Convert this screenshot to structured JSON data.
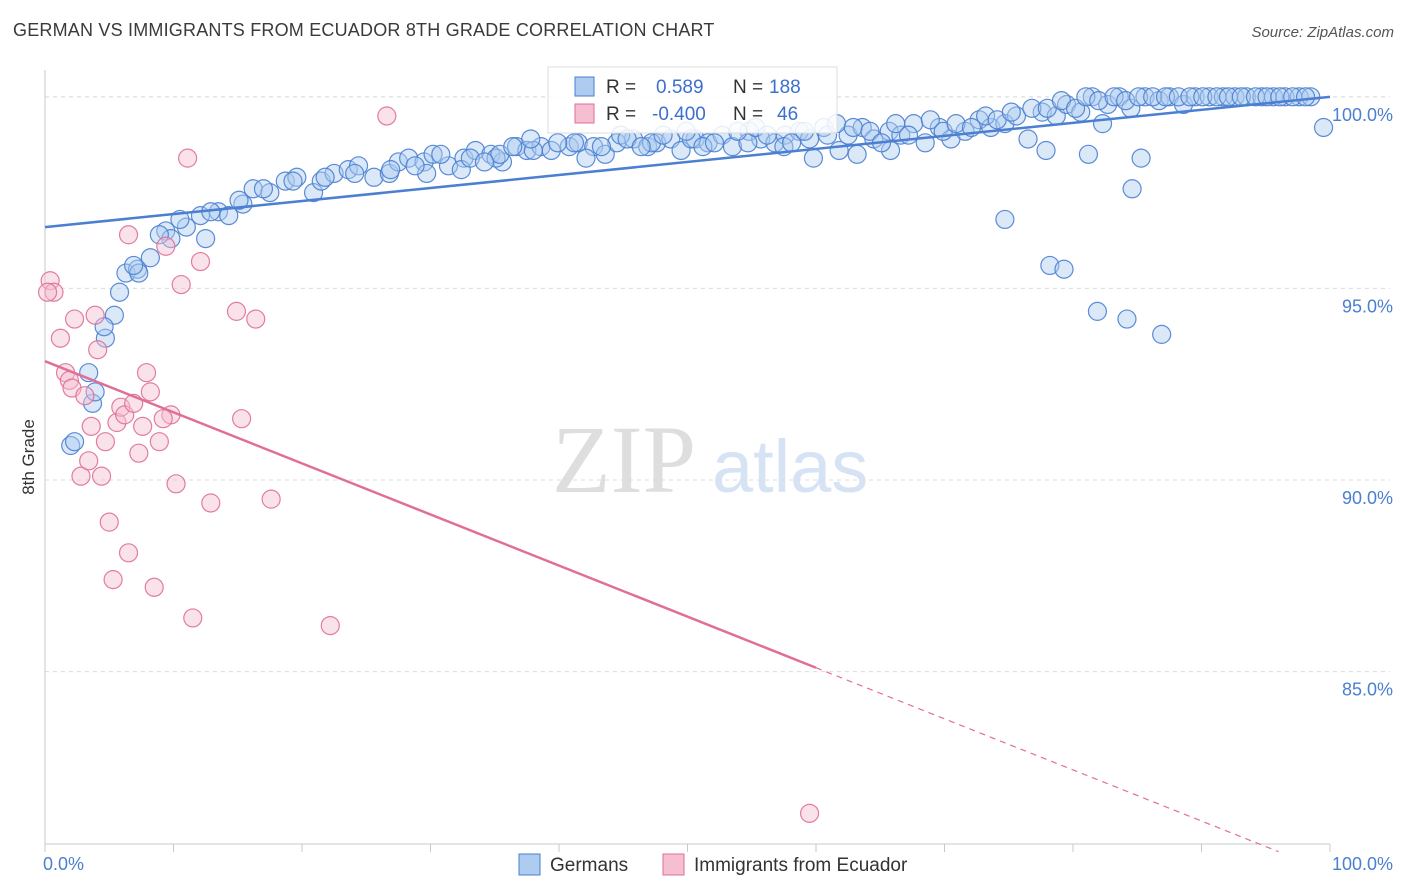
{
  "header": {
    "title": "GERMAN VS IMMIGRANTS FROM ECUADOR 8TH GRADE CORRELATION CHART",
    "source": "Source: ZipAtlas.com"
  },
  "watermark": {
    "zip": "ZIP",
    "atlas": "atlas"
  },
  "colors": {
    "germans": "#4a7fd1",
    "germans_fill": "#aecbf0",
    "ecuador": "#e06f96",
    "ecuador_fill": "#f5bfd1",
    "tick_text": "#4a7fd1"
  },
  "chart_data": {
    "type": "scatter",
    "title": "GERMAN VS IMMIGRANTS FROM ECUADOR 8TH GRADE CORRELATION CHART",
    "ylabel": "8th Grade",
    "xlabel": "",
    "xlim": [
      0,
      100
    ],
    "ylim": [
      80.5,
      100.7
    ],
    "y_ticks": [
      {
        "value": 85,
        "label": "85.0%"
      },
      {
        "value": 90,
        "label": "90.0%"
      },
      {
        "value": 95,
        "label": "95.0%"
      },
      {
        "value": 100,
        "label": "100.0%"
      }
    ],
    "x_tick_labels": {
      "min": "0.0%",
      "max": "100.0%"
    },
    "grid": "horizontal dashed",
    "legend_position": "top-center",
    "stats": [
      {
        "series": "Germans",
        "r_label": "R =",
        "r": "0.589",
        "n_label": "N =",
        "n": "188"
      },
      {
        "series": "Immigrants from Ecuador",
        "r_label": "R =",
        "r": "-0.400",
        "n_label": "N =",
        "n": "46"
      }
    ],
    "series": [
      {
        "name": "Germans",
        "trend": {
          "x0": 0,
          "y0": 96.6,
          "x1": 100,
          "y1": 100.0
        },
        "points": [
          [
            2,
            90.9
          ],
          [
            2.3,
            91.0
          ],
          [
            3.7,
            92.0
          ],
          [
            3.9,
            92.3
          ],
          [
            3.4,
            92.8
          ],
          [
            4.7,
            93.7
          ],
          [
            5.4,
            94.3
          ],
          [
            4.6,
            94.0
          ],
          [
            5.8,
            94.9
          ],
          [
            6.3,
            95.4
          ],
          [
            7.2,
            95.5
          ],
          [
            7.3,
            95.4
          ],
          [
            8.2,
            95.8
          ],
          [
            9.4,
            96.5
          ],
          [
            9.8,
            96.3
          ],
          [
            11.0,
            96.6
          ],
          [
            12.5,
            96.3
          ],
          [
            12.1,
            96.9
          ],
          [
            13.5,
            97.0
          ],
          [
            14.3,
            96.9
          ],
          [
            15.4,
            97.2
          ],
          [
            16.2,
            97.6
          ],
          [
            17.5,
            97.5
          ],
          [
            18.7,
            97.8
          ],
          [
            19.6,
            97.9
          ],
          [
            20.9,
            97.5
          ],
          [
            21.5,
            97.8
          ],
          [
            22.5,
            98.0
          ],
          [
            23.6,
            98.1
          ],
          [
            24.4,
            98.2
          ],
          [
            25.6,
            97.9
          ],
          [
            26.8,
            98.0
          ],
          [
            27.5,
            98.3
          ],
          [
            28.3,
            98.4
          ],
          [
            29.5,
            98.3
          ],
          [
            30.2,
            98.5
          ],
          [
            31.4,
            98.2
          ],
          [
            32.6,
            98.4
          ],
          [
            33.5,
            98.6
          ],
          [
            34.7,
            98.5
          ],
          [
            35.6,
            98.3
          ],
          [
            36.7,
            98.7
          ],
          [
            37.5,
            98.6
          ],
          [
            38.6,
            98.7
          ],
          [
            39.4,
            98.6
          ],
          [
            40.8,
            98.7
          ],
          [
            41.5,
            98.8
          ],
          [
            42.7,
            98.7
          ],
          [
            43.6,
            98.5
          ],
          [
            44.5,
            98.8
          ],
          [
            45.8,
            98.9
          ],
          [
            46.9,
            98.7
          ],
          [
            47.6,
            98.8
          ],
          [
            48.7,
            98.9
          ],
          [
            49.5,
            98.6
          ],
          [
            50.6,
            98.9
          ],
          [
            51.6,
            98.8
          ],
          [
            52.7,
            99.0
          ],
          [
            53.5,
            98.7
          ],
          [
            54.8,
            99.1
          ],
          [
            55.7,
            98.9
          ],
          [
            56.8,
            98.8
          ],
          [
            57.6,
            99.0
          ],
          [
            58.7,
            99.1
          ],
          [
            59.5,
            98.9
          ],
          [
            60.6,
            99.2
          ],
          [
            61.8,
            98.6
          ],
          [
            62.5,
            99.0
          ],
          [
            63.6,
            99.2
          ],
          [
            64.5,
            98.9
          ],
          [
            65.7,
            99.1
          ],
          [
            66.6,
            99.0
          ],
          [
            67.6,
            99.3
          ],
          [
            68.5,
            98.8
          ],
          [
            69.6,
            99.2
          ],
          [
            70.5,
            98.9
          ],
          [
            71.6,
            99.1
          ],
          [
            72.7,
            99.4
          ],
          [
            73.6,
            99.2
          ],
          [
            74.7,
            99.3
          ],
          [
            75.6,
            99.5
          ],
          [
            76.5,
            98.9
          ],
          [
            77.6,
            99.6
          ],
          [
            78.7,
            99.5
          ],
          [
            79.5,
            99.8
          ],
          [
            80.6,
            99.6
          ],
          [
            81.5,
            100.0
          ],
          [
            82.7,
            99.8
          ],
          [
            83.6,
            100.0
          ],
          [
            84.5,
            99.7
          ],
          [
            85.6,
            100.0
          ],
          [
            86.7,
            99.9
          ],
          [
            87.5,
            100.0
          ],
          [
            88.6,
            99.8
          ],
          [
            89.5,
            100.0
          ],
          [
            90.6,
            100.0
          ],
          [
            91.7,
            100.0
          ],
          [
            92.6,
            100.0
          ],
          [
            93.5,
            100.0
          ],
          [
            94.7,
            100.0
          ],
          [
            95.6,
            100.0
          ],
          [
            96.5,
            100.0
          ],
          [
            97.6,
            100.0
          ],
          [
            98.5,
            100.0
          ],
          [
            99.5,
            99.2
          ],
          [
            82.3,
            99.3
          ],
          [
            84.6,
            97.6
          ],
          [
            85.3,
            98.4
          ],
          [
            81.2,
            98.5
          ],
          [
            77.9,
            98.6
          ],
          [
            74.7,
            96.8
          ],
          [
            78.2,
            95.6
          ],
          [
            79.3,
            95.5
          ],
          [
            81.9,
            94.4
          ],
          [
            84.2,
            94.2
          ],
          [
            86.9,
            93.8
          ],
          [
            65.8,
            98.6
          ],
          [
            63.2,
            98.5
          ],
          [
            59.8,
            98.4
          ],
          [
            57.5,
            98.7
          ],
          [
            54.7,
            98.8
          ],
          [
            50.3,
            98.9
          ],
          [
            47.2,
            98.8
          ],
          [
            44.8,
            99.0
          ],
          [
            41.2,
            98.8
          ],
          [
            38.0,
            98.6
          ],
          [
            35.1,
            98.4
          ],
          [
            32.4,
            98.1
          ],
          [
            29.7,
            98.0
          ],
          [
            26.9,
            98.1
          ],
          [
            24.1,
            98.0
          ],
          [
            21.8,
            97.9
          ],
          [
            19.3,
            97.8
          ],
          [
            17.0,
            97.6
          ],
          [
            15.1,
            97.3
          ],
          [
            12.9,
            97.0
          ],
          [
            10.5,
            96.8
          ],
          [
            8.9,
            96.4
          ],
          [
            6.9,
            95.6
          ],
          [
            35.4,
            98.5
          ],
          [
            36.4,
            98.7
          ],
          [
            37.8,
            98.9
          ],
          [
            39.9,
            98.8
          ],
          [
            42.1,
            98.4
          ],
          [
            43.3,
            98.7
          ],
          [
            45.3,
            98.9
          ],
          [
            46.4,
            98.7
          ],
          [
            48.1,
            99.0
          ],
          [
            49.9,
            99.1
          ],
          [
            51.2,
            98.7
          ],
          [
            52.1,
            98.8
          ],
          [
            53.9,
            99.1
          ],
          [
            55.3,
            99.2
          ],
          [
            56.2,
            99.0
          ],
          [
            58.1,
            98.8
          ],
          [
            59.1,
            99.1
          ],
          [
            60.9,
            99.0
          ],
          [
            61.6,
            99.3
          ],
          [
            62.9,
            99.2
          ],
          [
            64.2,
            99.1
          ],
          [
            65.1,
            98.8
          ],
          [
            66.2,
            99.3
          ],
          [
            67.2,
            99.0
          ],
          [
            68.9,
            99.4
          ],
          [
            69.9,
            99.1
          ],
          [
            70.9,
            99.3
          ],
          [
            72.1,
            99.2
          ],
          [
            73.2,
            99.5
          ],
          [
            74.1,
            99.4
          ],
          [
            75.2,
            99.6
          ],
          [
            76.8,
            99.7
          ],
          [
            78.0,
            99.7
          ],
          [
            79.1,
            99.9
          ],
          [
            80.2,
            99.7
          ],
          [
            81.0,
            100.0
          ],
          [
            82.0,
            99.9
          ],
          [
            83.2,
            100.0
          ],
          [
            84.1,
            99.9
          ],
          [
            85.1,
            100.0
          ],
          [
            86.2,
            100.0
          ],
          [
            87.2,
            100.0
          ],
          [
            88.2,
            100.0
          ],
          [
            89.1,
            100.0
          ],
          [
            90.1,
            100.0
          ],
          [
            91.2,
            100.0
          ],
          [
            92.1,
            100.0
          ],
          [
            93.1,
            100.0
          ],
          [
            94.2,
            100.0
          ],
          [
            95.1,
            100.0
          ],
          [
            96.1,
            100.0
          ],
          [
            97.1,
            100.0
          ],
          [
            98.1,
            100.0
          ],
          [
            30.8,
            98.5
          ],
          [
            33.1,
            98.4
          ],
          [
            34.2,
            98.3
          ],
          [
            28.8,
            98.2
          ]
        ]
      },
      {
        "name": "Immigrants from Ecuador",
        "trend": {
          "x0": 0,
          "y0": 93.1,
          "x1": 60,
          "y1": 85.1
        },
        "trend_dashed": {
          "x0": 60,
          "y0": 85.1,
          "x1": 96,
          "y1": 80.3
        },
        "points": [
          [
            0.4,
            95.2
          ],
          [
            0.7,
            94.9
          ],
          [
            1.2,
            93.7
          ],
          [
            1.6,
            92.8
          ],
          [
            1.9,
            92.6
          ],
          [
            2.1,
            92.4
          ],
          [
            2.3,
            94.2
          ],
          [
            2.8,
            90.1
          ],
          [
            3.1,
            92.2
          ],
          [
            3.4,
            90.5
          ],
          [
            3.6,
            91.4
          ],
          [
            3.9,
            94.3
          ],
          [
            4.1,
            93.4
          ],
          [
            4.4,
            90.1
          ],
          [
            4.7,
            91.0
          ],
          [
            5.0,
            88.9
          ],
          [
            5.3,
            87.4
          ],
          [
            5.6,
            91.5
          ],
          [
            5.9,
            91.9
          ],
          [
            6.2,
            91.7
          ],
          [
            6.5,
            88.1
          ],
          [
            6.9,
            92.0
          ],
          [
            7.3,
            90.7
          ],
          [
            7.6,
            91.4
          ],
          [
            7.9,
            92.8
          ],
          [
            8.2,
            92.3
          ],
          [
            8.5,
            87.2
          ],
          [
            8.9,
            91.0
          ],
          [
            9.4,
            96.1
          ],
          [
            9.8,
            91.7
          ],
          [
            10.2,
            89.9
          ],
          [
            10.6,
            95.1
          ],
          [
            11.1,
            98.4
          ],
          [
            11.5,
            86.4
          ],
          [
            12.1,
            95.7
          ],
          [
            12.9,
            89.4
          ],
          [
            14.9,
            94.4
          ],
          [
            15.3,
            91.6
          ],
          [
            16.4,
            94.2
          ],
          [
            17.6,
            89.5
          ],
          [
            22.2,
            86.2
          ],
          [
            26.6,
            99.5
          ],
          [
            59.5,
            81.3
          ],
          [
            0.2,
            94.9
          ],
          [
            6.5,
            96.4
          ],
          [
            9.2,
            91.6
          ]
        ]
      }
    ]
  },
  "legend": {
    "germans_label": "Germans",
    "ecuador_label": "Immigrants from Ecuador"
  }
}
